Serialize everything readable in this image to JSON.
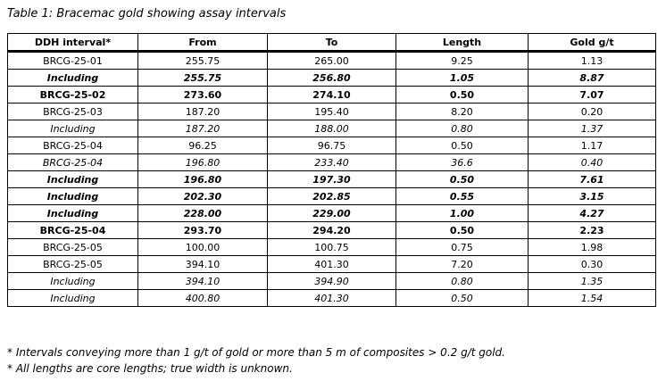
{
  "title": "Table 1: Bracemac gold showing assay intervals",
  "table": {
    "columns": [
      "DDH interval*",
      "From",
      "To",
      "Length",
      "Gold g/t"
    ],
    "rows": [
      {
        "style": "normal",
        "cells": [
          "BRCG-25-01",
          "255.75",
          "265.00",
          "9.25",
          "1.13"
        ]
      },
      {
        "style": "bold-italic",
        "cells": [
          "Including",
          "255.75",
          "256.80",
          "1.05",
          "8.87"
        ]
      },
      {
        "style": "bold",
        "cells": [
          "BRCG-25-02",
          "273.60",
          "274.10",
          "0.50",
          "7.07"
        ]
      },
      {
        "style": "normal",
        "cells": [
          "BRCG-25-03",
          "187.20",
          "195.40",
          "8.20",
          "0.20"
        ]
      },
      {
        "style": "italic",
        "cells": [
          "Including",
          "187.20",
          "188.00",
          "0.80",
          "1.37"
        ]
      },
      {
        "style": "normal",
        "cells": [
          "BRCG-25-04",
          "96.25",
          "96.75",
          "0.50",
          "1.17"
        ]
      },
      {
        "style": "italic",
        "cells": [
          "BRCG-25-04",
          "196.80",
          "233.40",
          "36.6",
          "0.40"
        ]
      },
      {
        "style": "bold-italic",
        "cells": [
          "Including",
          "196.80",
          "197.30",
          "0.50",
          "7.61"
        ]
      },
      {
        "style": "bold-italic",
        "cells": [
          "Including",
          "202.30",
          "202.85",
          "0.55",
          "3.15"
        ]
      },
      {
        "style": "bold-italic",
        "cells": [
          "Including",
          "228.00",
          "229.00",
          "1.00",
          "4.27"
        ]
      },
      {
        "style": "bold",
        "cells": [
          "BRCG-25-04",
          "293.70",
          "294.20",
          "0.50",
          "2.23"
        ]
      },
      {
        "style": "normal",
        "cells": [
          "BRCG-25-05",
          "100.00",
          "100.75",
          "0.75",
          "1.98"
        ]
      },
      {
        "style": "normal",
        "cells": [
          "BRCG-25-05",
          "394.10",
          "401.30",
          "7.20",
          "0.30"
        ]
      },
      {
        "style": "italic",
        "cells": [
          "Including",
          "394.10",
          "394.90",
          "0.80",
          "1.35"
        ]
      },
      {
        "style": "italic",
        "cells": [
          "Including",
          "400.80",
          "401.30",
          "0.50",
          "1.54"
        ]
      }
    ]
  },
  "footnotes": [
    "* Intervals conveying more than 1 g/t of gold or more than 5 m of composites > 0.2 g/t gold.",
    "* All lengths are core lengths; true width is unknown."
  ],
  "colors": {
    "text": "#000000",
    "border": "#000000",
    "background": "#ffffff"
  }
}
